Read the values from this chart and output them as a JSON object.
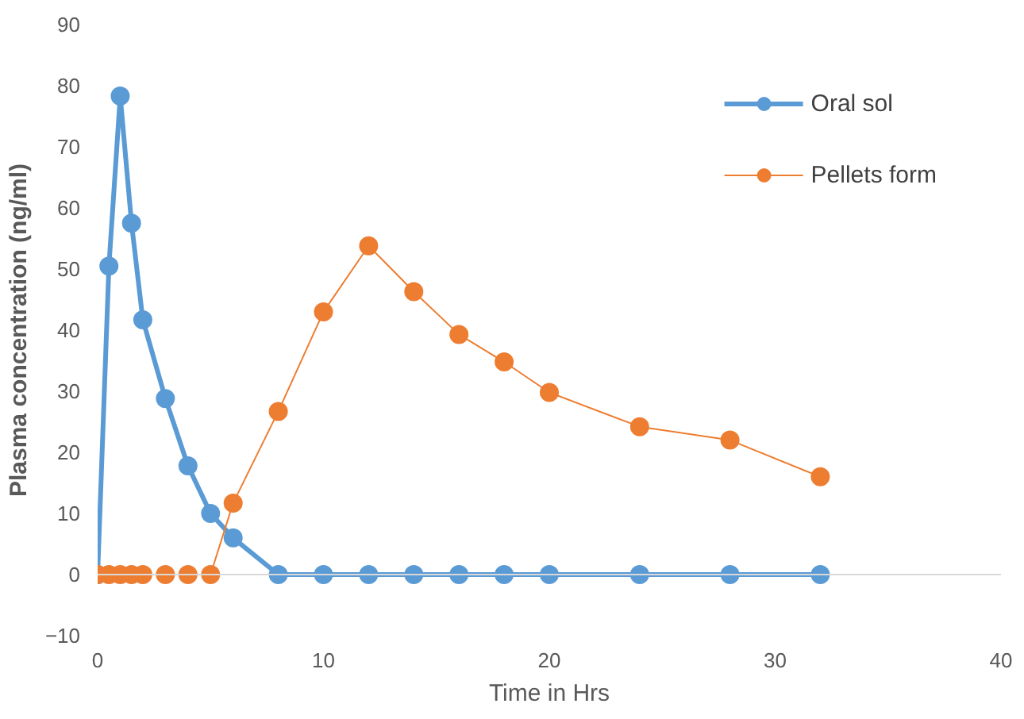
{
  "chart_data": {
    "type": "line",
    "xlabel": "Time in Hrs",
    "ylabel": "Plasma concentration (ng/ml)",
    "xlim": [
      0,
      40
    ],
    "xticks": [
      0,
      10,
      20,
      30,
      40
    ],
    "ylim": [
      -10,
      90
    ],
    "yticks": [
      -10,
      0,
      10,
      20,
      30,
      40,
      50,
      60,
      70,
      80,
      90
    ],
    "grid": false,
    "ref_lines": [
      {
        "axis": "y",
        "value": 0,
        "color": "#d9d9d9"
      }
    ],
    "legend": "top right",
    "marker": "circle",
    "series": [
      {
        "name": "Oral sol",
        "color": "#5b9bd5",
        "x": [
          0,
          0.5,
          1,
          1.5,
          2,
          3,
          4,
          5,
          6,
          8,
          10,
          12,
          14,
          16,
          18,
          20,
          24,
          28,
          32
        ],
        "values": [
          0,
          50.5,
          78.3,
          57.5,
          41.7,
          28.8,
          17.8,
          10,
          6,
          0,
          0,
          0,
          0,
          0,
          0,
          0,
          0,
          0,
          0
        ]
      },
      {
        "name": "Pellets form",
        "color": "#ed7d31",
        "x": [
          0,
          0.5,
          1,
          1.5,
          2,
          3,
          4,
          5,
          6,
          8,
          10,
          12,
          14,
          16,
          18,
          20,
          24,
          28,
          32
        ],
        "values": [
          0,
          0,
          0,
          0,
          0,
          0,
          0,
          0,
          11.7,
          26.7,
          43,
          53.8,
          46.3,
          39.3,
          34.8,
          29.8,
          24.2,
          22,
          16
        ]
      }
    ]
  }
}
